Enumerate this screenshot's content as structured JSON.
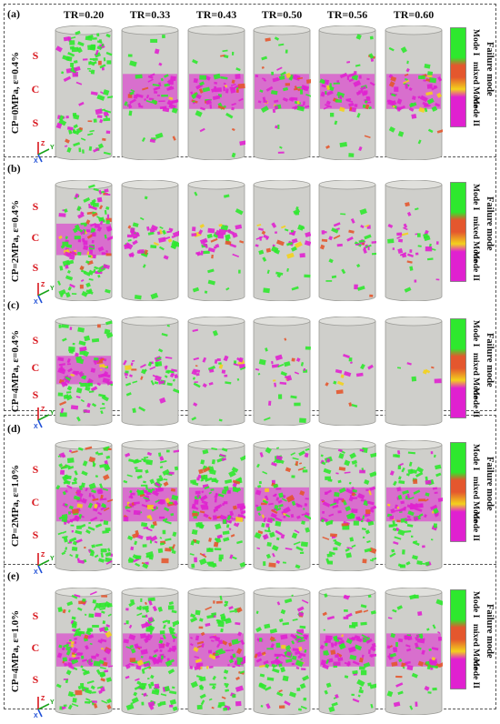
{
  "columns": [
    "TR=0.20",
    "TR=0.33",
    "TR=0.43",
    "TR=0.50",
    "TR=0.56",
    "TR=0.60"
  ],
  "zones": [
    "S",
    "C",
    "S"
  ],
  "legend": {
    "title": "Failure mode",
    "labels": [
      "Mode I",
      "mixed Mode",
      "Mode II"
    ],
    "colors": {
      "mode1": "#2ee82e",
      "mixed": "#e4572e",
      "mixed2": "#f3d21c",
      "mode2": "#e021d0"
    }
  },
  "axis": {
    "z": "Z",
    "y": "Y",
    "x": "X"
  },
  "panels": [
    {
      "id": "(a)",
      "label": "CP=0MPa, ε=0.4%"
    },
    {
      "id": "(b)",
      "label": "CP=2MPa, ε=0.4%"
    },
    {
      "id": "(c)",
      "label": "CP=4MPa, ε=0.4%"
    },
    {
      "id": "(d)",
      "label": "CP=2MPa, ε=1.0%"
    },
    {
      "id": "(e)",
      "label": "CP=4MPa, ε=1.0%"
    }
  ]
}
